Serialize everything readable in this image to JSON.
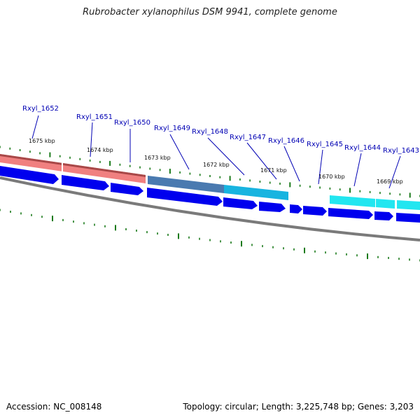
{
  "title": "Rubrobacter xylanophilus DSM 9941, complete genome",
  "footer": {
    "accession": "Accession: NC_008148",
    "summary": "Topology: circular; Length: 3,225,748 bp; Genes: 3,203"
  },
  "colors": {
    "cds_blue": "#0000ee",
    "pink": "#f08080",
    "steel": "#4a7ab0",
    "cyan_dark": "#18b4e0",
    "cyan": "#22e6f0",
    "backbone": "#808080",
    "tick": "#1a7a1a",
    "label": "#0000b4"
  },
  "gene_labels": [
    "Rxyl_1652",
    "Rxyl_1651",
    "Rxyl_1650",
    "Rxyl_1649",
    "Rxyl_1648",
    "Rxyl_1647",
    "Rxyl_1646",
    "Rxyl_1645",
    "Rxyl_1644",
    "Rxyl_1643"
  ],
  "kbp_labels": [
    "1675 kbp",
    "1674 kbp",
    "1673 kbp",
    "1672 kbp",
    "1671 kbp",
    "1670 kbp",
    "1669 kbp"
  ]
}
